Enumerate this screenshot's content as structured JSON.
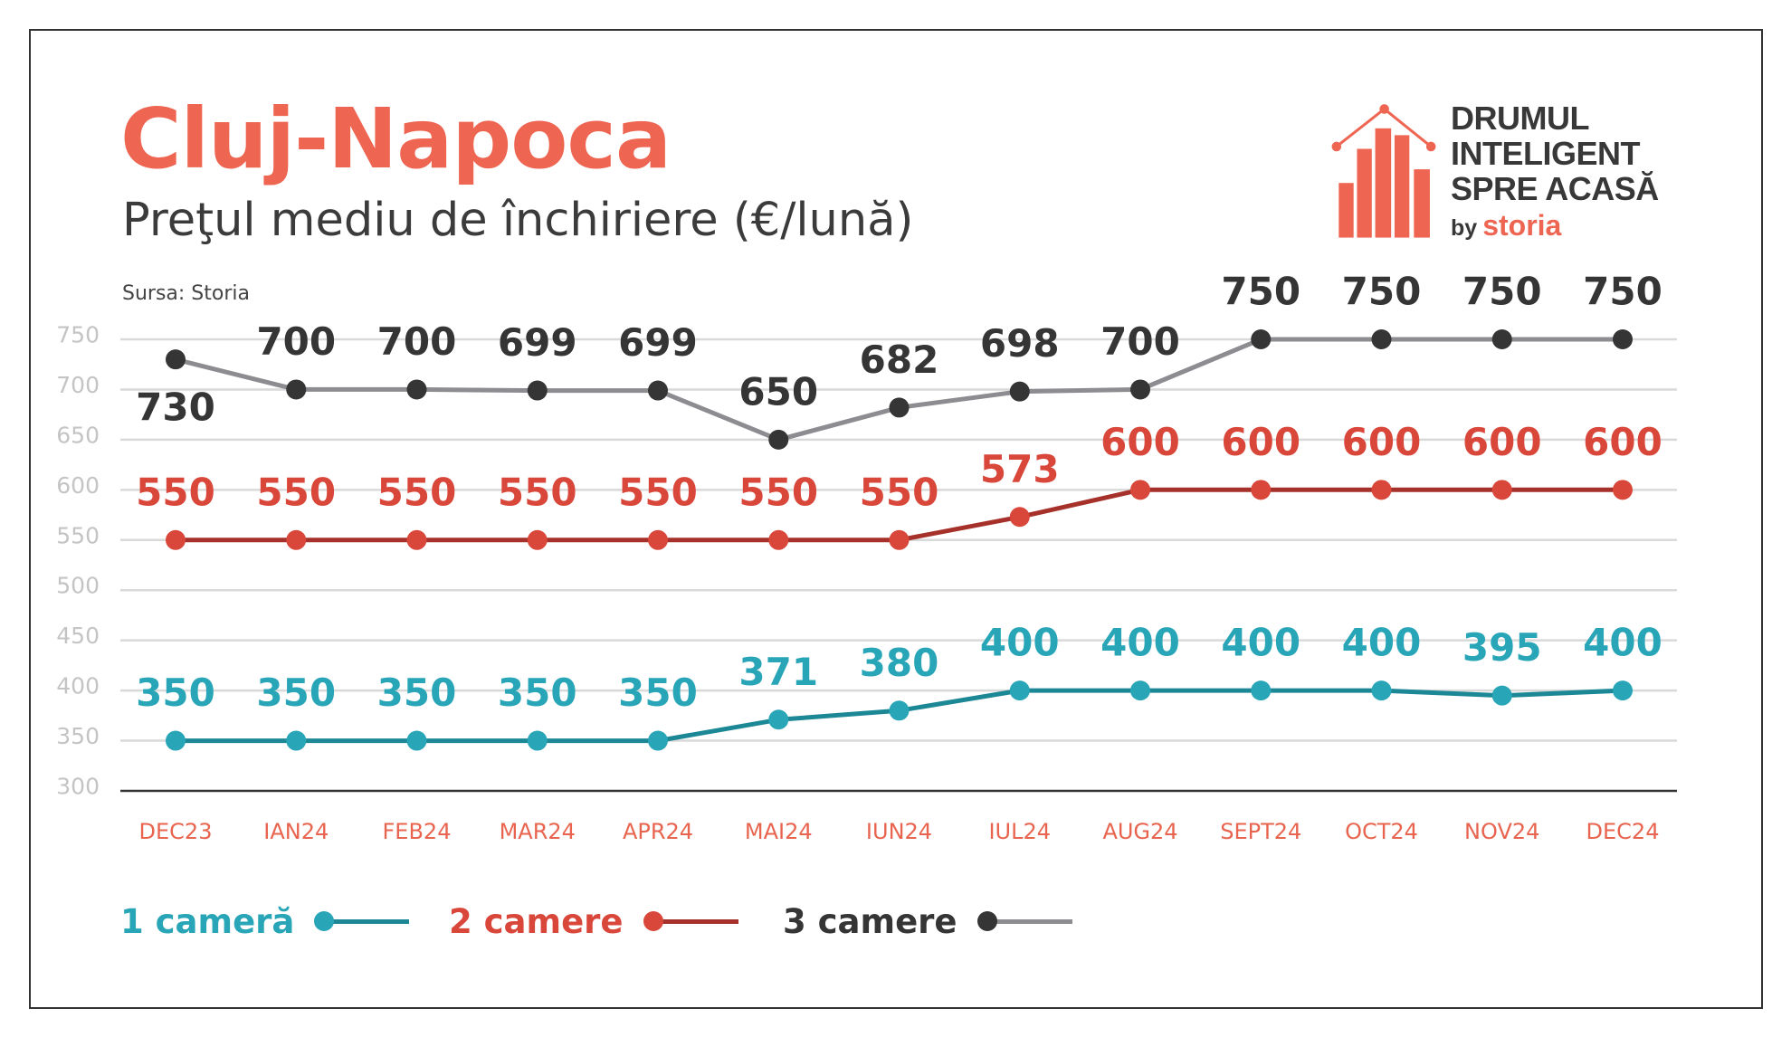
{
  "theme": {
    "brand_color": "#ee6551",
    "text_color": "#333333",
    "x_tick_color": "#e8644f",
    "y_tick_color": "#c4c4c4",
    "grid_color": "#d9d9d9",
    "axis_color": "#333333"
  },
  "logo": {
    "icon": "house-bar-chart-icon",
    "lines": [
      "DRUMUL",
      "INTELIGENT",
      "SPRE ACASĂ"
    ],
    "by": "by",
    "brand": "storia"
  },
  "chart_data": {
    "type": "line",
    "title": "Cluj-Napoca",
    "subtitle": "Preţul mediu de închiriere (€/lună)",
    "source": "Sursa: Storia",
    "xlabel": "",
    "ylabel": "",
    "categories": [
      "DEC23",
      "IAN24",
      "FEB24",
      "MAR24",
      "APR24",
      "MAI24",
      "IUN24",
      "IUL24",
      "AUG24",
      "SEPT24",
      "OCT24",
      "NOV24",
      "DEC24"
    ],
    "yticks": [
      300,
      350,
      400,
      450,
      500,
      550,
      600,
      650,
      700,
      750
    ],
    "ylim": [
      300,
      750
    ],
    "grid": true,
    "data_labels": true,
    "legend_position": "bottom-left",
    "series": [
      {
        "name": "1 cameră",
        "values": [
          350,
          350,
          350,
          350,
          350,
          371,
          380,
          400,
          400,
          400,
          400,
          395,
          400
        ],
        "color": "#28a5b7",
        "line_color": "#1c8896"
      },
      {
        "name": "2 camere",
        "values": [
          550,
          550,
          550,
          550,
          550,
          550,
          550,
          573,
          600,
          600,
          600,
          600,
          600
        ],
        "color": "#d9473b",
        "line_color": "#a6312a"
      },
      {
        "name": "3 camere",
        "values": [
          730,
          700,
          700,
          699,
          699,
          650,
          682,
          698,
          700,
          750,
          750,
          750,
          750
        ],
        "color": "#353535",
        "line_color": "#8c8c91"
      }
    ]
  }
}
